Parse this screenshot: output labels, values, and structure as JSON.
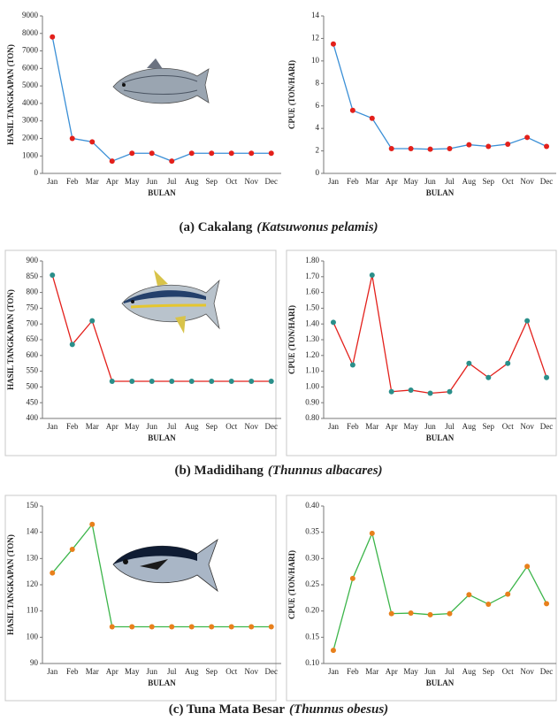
{
  "chart_data": [
    {
      "type": "line",
      "categories": [
        "Jan",
        "Feb",
        "Mar",
        "Apr",
        "May",
        "Jun",
        "Jul",
        "Aug",
        "Sep",
        "Oct",
        "Nov",
        "Dec"
      ],
      "values": [
        7800,
        2000,
        1800,
        700,
        1150,
        1150,
        700,
        1150,
        1150,
        1150,
        1150,
        1150
      ],
      "line_color": "#3a8fd6",
      "marker_color": "#e3201b",
      "ylim": [
        0,
        9000
      ],
      "yticks": [
        0,
        1000,
        2000,
        3000,
        4000,
        5000,
        6000,
        7000,
        8000,
        9000
      ],
      "y_label": "HASIL TANGKAPAN (TON)",
      "x_label": "BULAN",
      "frame": false
    },
    {
      "type": "line",
      "categories": [
        "Jan",
        "Feb",
        "Mar",
        "Apr",
        "May",
        "Jun",
        "Jul",
        "Aug",
        "Sep",
        "Oct",
        "Nov",
        "Dec"
      ],
      "values": [
        11.5,
        5.6,
        4.9,
        2.2,
        2.2,
        2.15,
        2.2,
        2.55,
        2.4,
        2.6,
        3.2,
        2.4
      ],
      "line_color": "#3a8fd6",
      "marker_color": "#e3201b",
      "ylim": [
        0,
        14
      ],
      "yticks": [
        0,
        2,
        4,
        6,
        8,
        10,
        12,
        14
      ],
      "y_label": "CPUE (TON/HARI)",
      "x_label": "BULAN",
      "frame": false
    },
    {
      "type": "line",
      "categories": [
        "Jan",
        "Feb",
        "Mar",
        "Apr",
        "May",
        "Jun",
        "Jul",
        "Aug",
        "Sep",
        "Oct",
        "Nov",
        "Dec"
      ],
      "values": [
        855,
        635,
        710,
        518,
        518,
        518,
        518,
        518,
        518,
        518,
        518,
        518
      ],
      "line_color": "#e3201b",
      "marker_color": "#2a8f8a",
      "ylim": [
        400,
        900
      ],
      "yticks": [
        400,
        450,
        500,
        550,
        600,
        650,
        700,
        750,
        800,
        850,
        900
      ],
      "y_label": "HASIL TANGKAPAN (TON)",
      "x_label": "BULAN",
      "frame": true
    },
    {
      "type": "line",
      "categories": [
        "Jan",
        "Feb",
        "Mar",
        "Apr",
        "May",
        "Jun",
        "Jul",
        "Aug",
        "Sep",
        "Oct",
        "Nov",
        "Dec"
      ],
      "values": [
        1.41,
        1.14,
        1.71,
        0.97,
        0.98,
        0.96,
        0.97,
        1.15,
        1.06,
        1.15,
        1.42,
        1.06
      ],
      "line_color": "#e3201b",
      "marker_color": "#2a8f8a",
      "ylim": [
        0.8,
        1.8
      ],
      "yticks": [
        {
          "value": 0.8,
          "label": "0.80"
        },
        {
          "value": 0.9,
          "label": "0.90"
        },
        {
          "value": 1,
          "label": "1.00"
        },
        {
          "value": 1.1,
          "label": "1.10"
        },
        {
          "value": 1.2,
          "label": "1.20"
        },
        {
          "value": 1.3,
          "label": "1.30"
        },
        {
          "value": 1.4,
          "label": "1.40"
        },
        {
          "value": 1.5,
          "label": "1.50"
        },
        {
          "value": 1.6,
          "label": "1.60"
        },
        {
          "value": 1.7,
          "label": "1.70"
        },
        {
          "value": 1.8,
          "label": "1.80"
        }
      ],
      "y_label": "CPUE (TON/HARI)",
      "x_label": "BULAN",
      "frame": true
    },
    {
      "type": "line",
      "categories": [
        "Jan",
        "Feb",
        "Mar",
        "Apr",
        "May",
        "Jun",
        "Jul",
        "Aug",
        "Sep",
        "Oct",
        "Nov",
        "Dec"
      ],
      "values": [
        124.5,
        133.5,
        143,
        104,
        104,
        104,
        104,
        104,
        104,
        104,
        104,
        104
      ],
      "line_color": "#3cb54a",
      "marker_color": "#e8801c",
      "ylim": [
        90,
        150
      ],
      "yticks": [
        90,
        100,
        110,
        120,
        130,
        140,
        150
      ],
      "y_label": "HASIL TANGKAPAN (TON)",
      "x_label": "BULAN",
      "frame": true
    },
    {
      "type": "line",
      "categories": [
        "Jan",
        "Feb",
        "Mar",
        "Apr",
        "May",
        "Jun",
        "Jul",
        "Aug",
        "Sep",
        "Oct",
        "Nov",
        "Dec"
      ],
      "values": [
        0.125,
        0.262,
        0.348,
        0.195,
        0.196,
        0.193,
        0.195,
        0.231,
        0.213,
        0.232,
        0.285,
        0.214
      ],
      "line_color": "#3cb54a",
      "marker_color": "#e8801c",
      "ylim": [
        0.1,
        0.4
      ],
      "yticks": [
        {
          "value": 0.1,
          "label": "0.10"
        },
        {
          "value": 0.15,
          "label": "0.15"
        },
        {
          "value": 0.2,
          "label": "0.20"
        },
        {
          "value": 0.25,
          "label": "0.25"
        },
        {
          "value": 0.3,
          "label": "0.30"
        },
        {
          "value": 0.35,
          "label": "0.35"
        },
        {
          "value": 0.4,
          "label": "0.40"
        }
      ],
      "y_label": "CPUE (TON/HARI)",
      "x_label": "BULAN",
      "frame": true
    }
  ],
  "captions": [
    {
      "label": "(a) Cakalang",
      "species": "(Katsuwonus pelamis)"
    },
    {
      "label": "(b) Madidihang",
      "species": "(Thunnus albacares)"
    },
    {
      "label": "(c) Tuna Mata Besar",
      "species": "(Thunnus obesus)"
    }
  ]
}
